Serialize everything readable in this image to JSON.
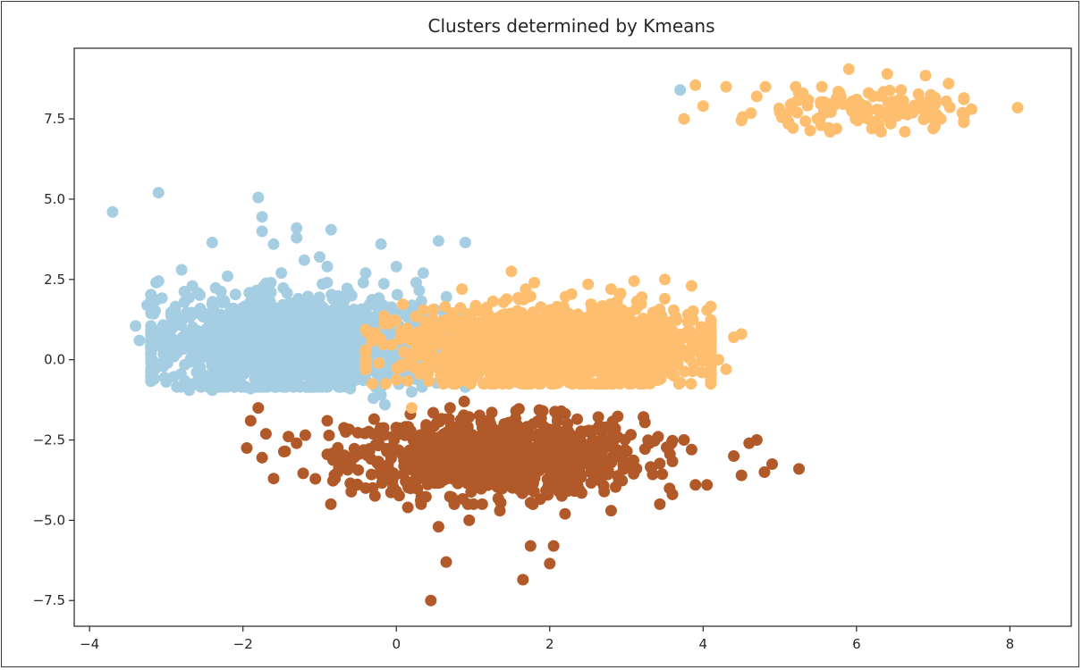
{
  "chart_data": {
    "type": "scatter",
    "title": "Clusters determined by Kmeans",
    "xlabel": "",
    "ylabel": "",
    "xlim": [
      -4.2,
      8.8
    ],
    "ylim": [
      -8.3,
      9.7
    ],
    "grid": false,
    "legend": "none",
    "x_ticks": [
      -4,
      -2,
      0,
      2,
      4,
      6,
      8
    ],
    "x_tick_labels": [
      "−4",
      "−2",
      "0",
      "2",
      "4",
      "6",
      "8"
    ],
    "y_ticks": [
      -7.5,
      -5.0,
      -2.5,
      0.0,
      2.5,
      5.0,
      7.5
    ],
    "y_tick_labels": [
      "−7.5",
      "−5.0",
      "−2.5",
      "0.0",
      "2.5",
      "5.0",
      "7.5"
    ],
    "series": [
      {
        "color": "#a6cee3",
        "points": [
          [
            -3.7,
            4.6
          ],
          [
            -3.1,
            5.2
          ],
          [
            -1.8,
            5.05
          ],
          [
            -1.75,
            4.45
          ],
          [
            -1.75,
            4.0
          ],
          [
            -1.6,
            3.6
          ],
          [
            -1.3,
            3.8
          ],
          [
            -1.3,
            4.1
          ],
          [
            -0.85,
            4.05
          ],
          [
            -2.4,
            3.65
          ],
          [
            -0.2,
            3.6
          ],
          [
            0.55,
            3.7
          ],
          [
            0.9,
            3.65
          ],
          [
            -3.1,
            2.45
          ],
          [
            -3.25,
            1.7
          ],
          [
            -3.4,
            1.05
          ],
          [
            -3.35,
            0.6
          ],
          [
            -2.8,
            2.8
          ],
          [
            -2.2,
            2.6
          ],
          [
            -1.5,
            2.7
          ],
          [
            -0.9,
            2.9
          ],
          [
            -0.4,
            2.7
          ],
          [
            0.0,
            2.9
          ],
          [
            0.35,
            2.7
          ],
          [
            -1.2,
            3.1
          ],
          [
            -1.0,
            3.2
          ],
          [
            3.7,
            8.4
          ],
          [
            -0.3,
            -1.2
          ],
          [
            -0.2,
            -1.1
          ],
          [
            -0.15,
            -1.4
          ],
          [
            -0.6,
            -0.9
          ],
          [
            -2.6,
            -0.7
          ],
          [
            -2.7,
            -0.95
          ],
          [
            -2.4,
            -0.95
          ],
          [
            -1.9,
            -0.9
          ],
          [
            -1.5,
            -0.6
          ],
          [
            0.2,
            -1.0
          ],
          [
            -0.5,
            0.2
          ],
          [
            -1.3,
            0.4
          ],
          [
            -2.0,
            0.2
          ],
          [
            -2.9,
            0.1
          ],
          [
            -3.2,
            0.0
          ]
        ],
        "cloud": {
          "center": [
            -1.25,
            0.55
          ],
          "spread": [
            0.95,
            0.7
          ],
          "x_range": [
            -3.2,
            0.9
          ],
          "y_range": [
            -0.85,
            2.4
          ],
          "count": 1600
        }
      },
      {
        "color": "#fdbf6f",
        "points": [
          [
            3.9,
            8.55
          ],
          [
            4.3,
            8.5
          ],
          [
            4.0,
            7.9
          ],
          [
            3.75,
            7.5
          ],
          [
            4.7,
            8.2
          ],
          [
            5.0,
            7.7
          ],
          [
            5.3,
            8.3
          ],
          [
            5.9,
            9.05
          ],
          [
            6.4,
            8.9
          ],
          [
            6.9,
            8.85
          ],
          [
            7.2,
            8.6
          ],
          [
            7.5,
            7.8
          ],
          [
            8.1,
            7.85
          ],
          [
            7.0,
            7.2
          ],
          [
            6.2,
            7.2
          ],
          [
            4.5,
            7.45
          ],
          [
            1.5,
            2.75
          ],
          [
            1.8,
            2.4
          ],
          [
            2.5,
            2.35
          ],
          [
            2.8,
            2.2
          ],
          [
            3.1,
            2.45
          ],
          [
            3.5,
            2.5
          ],
          [
            3.85,
            2.3
          ],
          [
            3.5,
            1.9
          ],
          [
            3.8,
            1.4
          ],
          [
            4.1,
            1.0
          ],
          [
            4.4,
            0.7
          ],
          [
            4.5,
            0.8
          ],
          [
            4.2,
            0.0
          ],
          [
            4.3,
            -0.3
          ],
          [
            3.2,
            1.95
          ],
          [
            2.9,
            1.6
          ],
          [
            3.3,
            1.2
          ],
          [
            3.6,
            0.9
          ],
          [
            3.9,
            0.3
          ],
          [
            0.2,
            -1.5
          ]
        ],
        "cloud": {
          "center": [
            2.1,
            0.4
          ],
          "spread": [
            1.0,
            0.6
          ],
          "x_range": [
            -0.4,
            4.1
          ],
          "y_range": [
            -0.75,
            2.2
          ],
          "count": 1500
        },
        "cloud2": {
          "center": [
            6.0,
            7.75
          ],
          "spread": [
            0.8,
            0.3
          ],
          "x_range": [
            4.4,
            7.4
          ],
          "y_range": [
            7.1,
            8.5
          ],
          "count": 130
        }
      },
      {
        "color": "#b15928",
        "points": [
          [
            0.45,
            -7.5
          ],
          [
            0.65,
            -6.3
          ],
          [
            1.65,
            -6.85
          ],
          [
            1.75,
            -5.8
          ],
          [
            2.05,
            -5.8
          ],
          [
            2.0,
            -6.35
          ],
          [
            0.55,
            -5.2
          ],
          [
            0.95,
            -5.0
          ],
          [
            1.35,
            -4.7
          ],
          [
            2.2,
            -4.8
          ],
          [
            2.8,
            -4.7
          ],
          [
            1.75,
            -4.45
          ],
          [
            -1.9,
            -1.9
          ],
          [
            -1.8,
            -1.5
          ],
          [
            -1.95,
            -2.75
          ],
          [
            -1.75,
            -3.05
          ],
          [
            -1.6,
            -3.7
          ],
          [
            -1.3,
            -2.6
          ],
          [
            -0.9,
            -1.9
          ],
          [
            -0.6,
            -3.85
          ],
          [
            -0.8,
            -3.7
          ],
          [
            -0.4,
            -4.0
          ],
          [
            0.0,
            -4.1
          ],
          [
            0.15,
            -4.6
          ],
          [
            4.4,
            -3.0
          ],
          [
            4.5,
            -3.6
          ],
          [
            4.6,
            -2.6
          ],
          [
            4.8,
            -3.5
          ],
          [
            4.9,
            -3.25
          ],
          [
            5.25,
            -3.4
          ],
          [
            4.05,
            -3.9
          ],
          [
            3.9,
            -3.9
          ],
          [
            3.85,
            -2.8
          ],
          [
            3.75,
            -2.5
          ],
          [
            3.3,
            -2.6
          ],
          [
            4.7,
            -2.5
          ]
        ],
        "cloud": {
          "center": [
            1.3,
            -3.0
          ],
          "spread": [
            0.95,
            0.6
          ],
          "x_range": [
            -1.7,
            3.6
          ],
          "y_range": [
            -4.5,
            -1.3
          ],
          "count": 950
        }
      }
    ]
  }
}
